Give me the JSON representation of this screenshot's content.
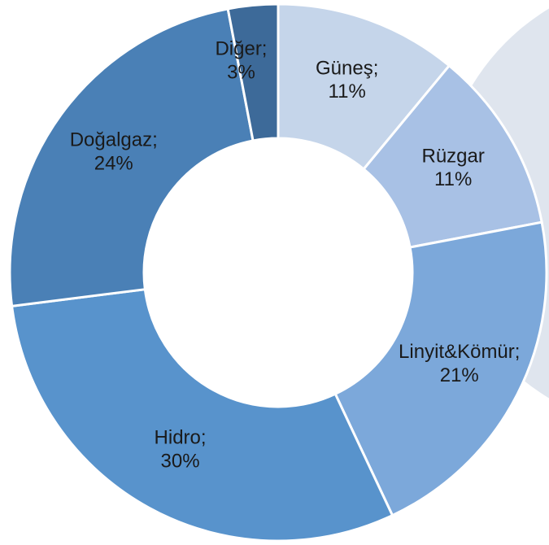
{
  "chart_data": {
    "type": "donut",
    "categories": [
      "Güneş;",
      "Rüzgar",
      "Linyit&Kömür;",
      "Hidro;",
      "Doğalgaz;",
      "Diğer;"
    ],
    "values": [
      11,
      11,
      21,
      30,
      24,
      3
    ],
    "value_labels": [
      "11%",
      "11%",
      "21%",
      "30%",
      "24%",
      "3%"
    ],
    "colors": [
      "#c5d5ea",
      "#a8c1e5",
      "#7ca8da",
      "#5893cc",
      "#4a80b6",
      "#3d6a99"
    ]
  }
}
